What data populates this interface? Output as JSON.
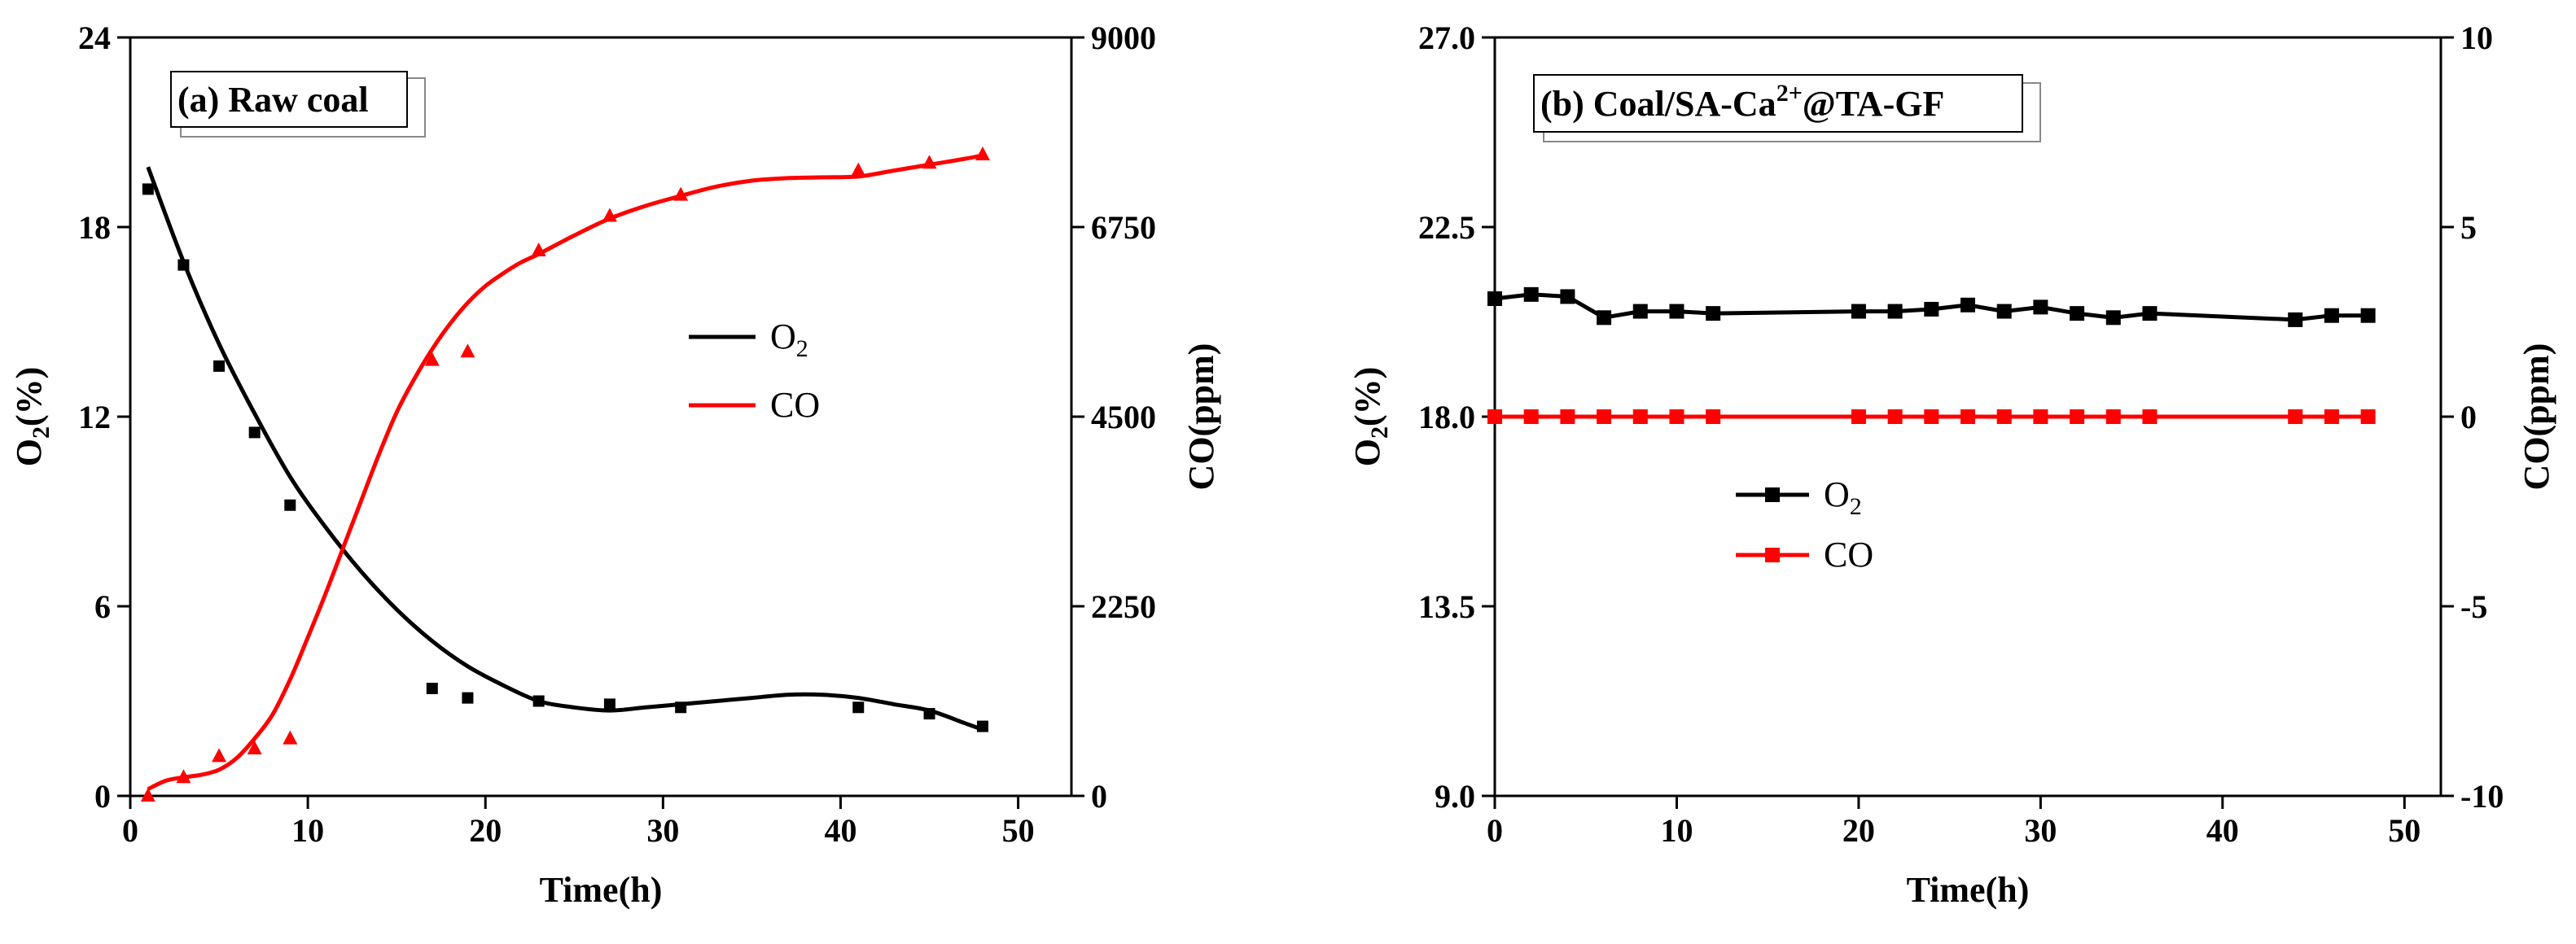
{
  "chart_data": [
    {
      "type": "scatter",
      "panel_label": "(a) Raw coal",
      "xlabel": "Time(h)",
      "ylabel_left_main": "O",
      "ylabel_left_sub": "2",
      "ylabel_left_tail": "(%)",
      "ylabel_right": "CO(ppm)",
      "xlim": [
        0,
        53
      ],
      "ylim_left": [
        0,
        24
      ],
      "ylim_right": [
        0,
        9000
      ],
      "xticks": [
        0,
        10,
        20,
        30,
        40,
        50
      ],
      "yticks_left": [
        0,
        6,
        12,
        18,
        24
      ],
      "yticks_right": [
        0,
        2250,
        4500,
        6750,
        9000
      ],
      "legend": {
        "placement": "center-right",
        "items": [
          {
            "main": "O",
            "sub": "2"
          },
          {
            "main": "CO",
            "sub": ""
          }
        ]
      },
      "series": [
        {
          "name": "O2",
          "axis": "left",
          "color": "#000000",
          "marker": "square",
          "x": [
            1,
            3,
            5,
            7,
            9,
            17,
            19,
            23,
            27,
            31,
            41,
            45,
            48
          ],
          "y": [
            19.2,
            16.8,
            13.6,
            11.5,
            9.2,
            3.4,
            3.1,
            3.0,
            2.9,
            2.8,
            2.8,
            2.6,
            2.2
          ],
          "fit_x": [
            1,
            3,
            5,
            7,
            9,
            11,
            13,
            15,
            17,
            19,
            21,
            23,
            25,
            27,
            29,
            31,
            33,
            35,
            37,
            39,
            41,
            43,
            45,
            47,
            48
          ],
          "fit_y": [
            19.9,
            16.9,
            14.3,
            12.1,
            10.1,
            8.5,
            7.1,
            5.9,
            4.9,
            4.1,
            3.5,
            3.0,
            2.8,
            2.7,
            2.8,
            2.9,
            3.0,
            3.1,
            3.2,
            3.2,
            3.1,
            2.9,
            2.7,
            2.3,
            2.1
          ]
        },
        {
          "name": "CO",
          "axis": "right",
          "color": "#ff0000",
          "marker": "triangle",
          "x": [
            1,
            3,
            5,
            7,
            9,
            17,
            19,
            23,
            27,
            31,
            41,
            45,
            48
          ],
          "y": [
            0,
            220,
            470,
            560,
            680,
            5170,
            5270,
            6470,
            6880,
            7130,
            7420,
            7510,
            7610
          ],
          "fit_x": [
            1,
            2,
            3,
            4,
            5,
            6,
            7,
            8,
            9,
            10,
            11,
            12,
            13,
            14,
            15,
            16,
            17,
            18,
            19,
            20,
            21,
            22,
            23,
            25,
            27,
            29,
            31,
            33,
            35,
            37,
            39,
            41,
            43,
            45,
            47,
            48
          ],
          "fit_y": [
            80,
            180,
            220,
            250,
            310,
            450,
            680,
            960,
            1380,
            1880,
            2400,
            2950,
            3500,
            4050,
            4550,
            4950,
            5300,
            5600,
            5850,
            6050,
            6200,
            6330,
            6430,
            6650,
            6850,
            7000,
            7120,
            7230,
            7300,
            7330,
            7340,
            7350,
            7420,
            7490,
            7560,
            7600
          ]
        }
      ]
    },
    {
      "type": "line",
      "panel_label_pre": "(b) Coal/SA-Ca",
      "panel_label_sup": "2+",
      "panel_label_post": "@TA-GF",
      "xlabel": "Time(h)",
      "ylabel_left_main": "O",
      "ylabel_left_sub": "2",
      "ylabel_left_tail": "(%)",
      "ylabel_right": "CO(ppm)",
      "xlim": [
        0,
        52
      ],
      "ylim_left": [
        9.0,
        27.0
      ],
      "ylim_right": [
        -10,
        10
      ],
      "xticks": [
        0,
        10,
        20,
        30,
        40,
        50
      ],
      "yticks_left": [
        "9.0",
        "13.5",
        "18.0",
        "22.5",
        "27.0"
      ],
      "yticks_right": [
        "-10",
        "-5",
        "0",
        "5",
        "10"
      ],
      "legend": {
        "placement": "center-left",
        "items": [
          {
            "main": "O",
            "sub": "2"
          },
          {
            "main": "CO",
            "sub": ""
          }
        ]
      },
      "series": [
        {
          "name": "O2",
          "axis": "left",
          "color": "#000000",
          "marker": "square",
          "x": [
            0,
            2,
            4,
            6,
            8,
            10,
            12,
            20,
            22,
            24,
            26,
            28,
            30,
            32,
            34,
            36,
            44,
            46,
            48
          ],
          "y": [
            20.8,
            20.9,
            20.85,
            20.35,
            20.5,
            20.5,
            20.45,
            20.5,
            20.5,
            20.55,
            20.65,
            20.5,
            20.6,
            20.45,
            20.35,
            20.45,
            20.3,
            20.4,
            20.4
          ]
        },
        {
          "name": "CO",
          "axis": "right",
          "color": "#ff0000",
          "marker": "square",
          "x": [
            0,
            2,
            4,
            6,
            8,
            10,
            12,
            20,
            22,
            24,
            26,
            28,
            30,
            32,
            34,
            36,
            44,
            46,
            48
          ],
          "y": [
            0,
            0,
            0,
            0,
            0,
            0,
            0,
            0,
            0,
            0,
            0,
            0,
            0,
            0,
            0,
            0,
            0,
            0,
            0
          ]
        }
      ]
    }
  ]
}
